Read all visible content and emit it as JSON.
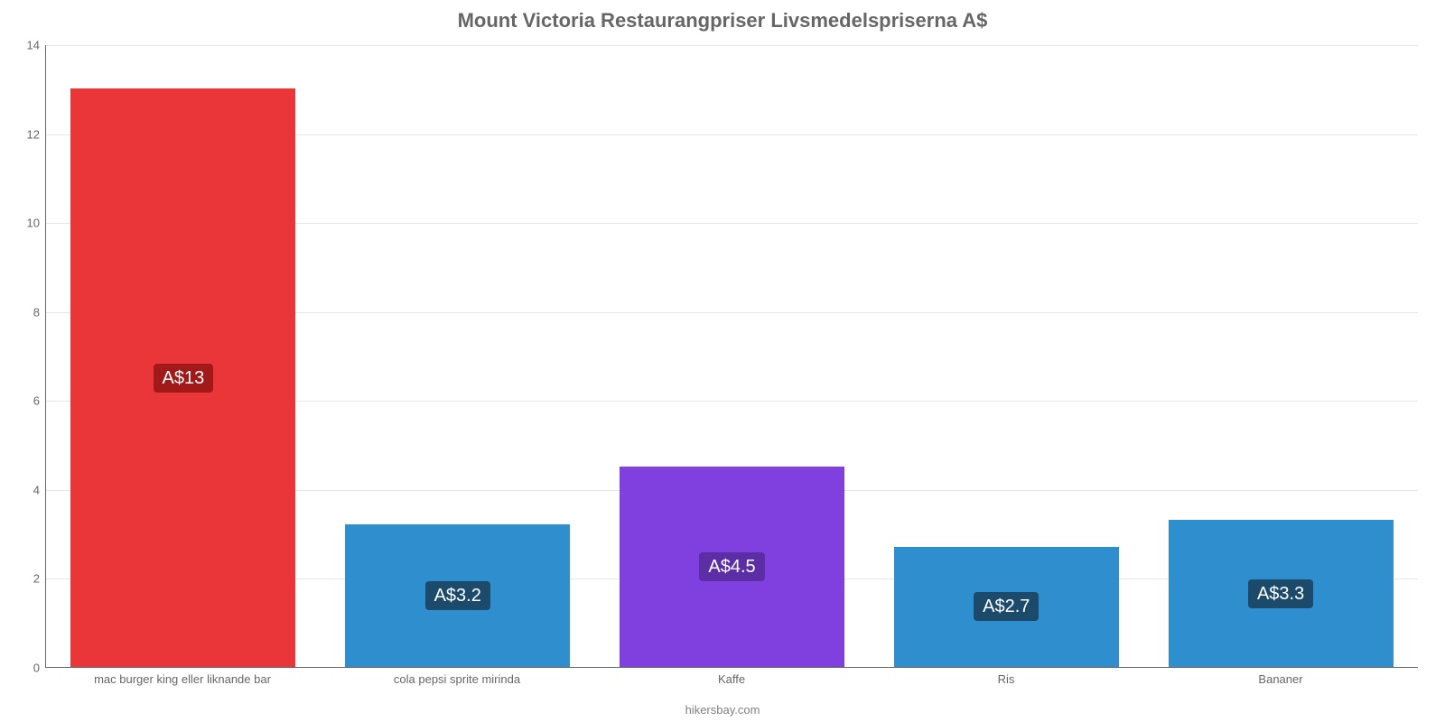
{
  "chart": {
    "type": "bar",
    "title": "Mount Victoria Restaurangpriser Livsmedelspriserna A$",
    "title_fontsize": 22,
    "title_color": "#666666",
    "credit": "hikersbay.com",
    "credit_color": "#808080",
    "background_color": "#ffffff",
    "grid_color": "#e6e6e6",
    "axis_label_color": "#666666",
    "ylim": [
      0,
      14
    ],
    "ytick_step": 2,
    "yticks": [
      0,
      2,
      4,
      6,
      8,
      10,
      12,
      14
    ],
    "bar_width": 0.82,
    "badge_bg": "#1b4a6b",
    "badge_bg_red": "#a21919",
    "badge_bg_purple": "#5b2ea6",
    "badge_fontsize": 20,
    "categories": [
      "mac burger king eller liknande bar",
      "cola pepsi sprite mirinda",
      "Kaffe",
      "Ris",
      "Bananer"
    ],
    "values": [
      13,
      3.2,
      4.5,
      2.7,
      3.3
    ],
    "value_labels": [
      "A$13",
      "A$3.2",
      "A$4.5",
      "A$2.7",
      "A$3.3"
    ],
    "bar_colors": [
      "#eb3639",
      "#2e8ece",
      "#8040e0",
      "#2e8ece",
      "#2e8ece"
    ],
    "badge_colors": [
      "#a21919",
      "#1b4a6b",
      "#5b2ea6",
      "#1b4a6b",
      "#1b4a6b"
    ]
  }
}
